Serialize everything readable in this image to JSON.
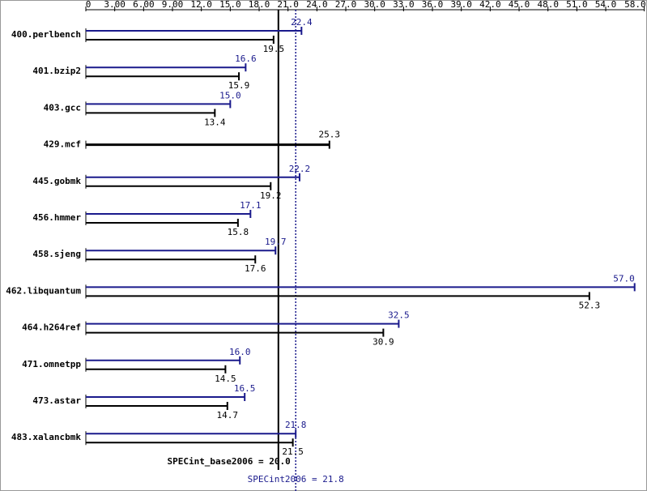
{
  "chart_data": {
    "type": "bar",
    "orientation": "horizontal",
    "categories": [
      "400.perlbench",
      "401.bzip2",
      "403.gcc",
      "429.mcf",
      "445.gobmk",
      "456.hmmer",
      "458.sjeng",
      "462.libquantum",
      "464.h264ref",
      "471.omnetpp",
      "473.astar",
      "483.xalancbmk"
    ],
    "series": [
      {
        "color": "#1a1a8c",
        "values": [
          22.4,
          16.6,
          15.0,
          null,
          22.2,
          17.1,
          19.7,
          57.0,
          32.5,
          16.0,
          16.5,
          21.8
        ],
        "value_labels": [
          "22.4",
          "16.6",
          "15.0",
          null,
          "22.2",
          "17.1",
          "19.7",
          "57.0",
          "32.5",
          "16.0",
          "16.5",
          "21.8"
        ]
      },
      {
        "color": "#000000",
        "values": [
          19.5,
          15.9,
          13.4,
          25.3,
          19.2,
          15.8,
          17.6,
          52.3,
          30.9,
          14.5,
          14.7,
          21.5
        ],
        "value_labels": [
          "19.5",
          "15.9",
          "13.4",
          "25.3",
          "19.2",
          "15.8",
          "17.6",
          "52.3",
          "30.9",
          "14.5",
          "14.7",
          "21.5"
        ]
      }
    ],
    "xlim": [
      0,
      58
    ],
    "xticks": [
      {
        "value": 0,
        "label": "0"
      },
      {
        "value": 3,
        "label": "3.00"
      },
      {
        "value": 6,
        "label": "6.00"
      },
      {
        "value": 9,
        "label": "9.00"
      },
      {
        "value": 12,
        "label": "12.0"
      },
      {
        "value": 15,
        "label": "15.0"
      },
      {
        "value": 18,
        "label": "18.0"
      },
      {
        "value": 21,
        "label": "21.0"
      },
      {
        "value": 24,
        "label": "24.0"
      },
      {
        "value": 27,
        "label": "27.0"
      },
      {
        "value": 30,
        "label": "30.0"
      },
      {
        "value": 33,
        "label": "33.0"
      },
      {
        "value": 36,
        "label": "36.0"
      },
      {
        "value": 39,
        "label": "39.0"
      },
      {
        "value": 42,
        "label": "42.0"
      },
      {
        "value": 45,
        "label": "45.0"
      },
      {
        "value": 48,
        "label": "48.0"
      },
      {
        "value": 51,
        "label": "51.0"
      },
      {
        "value": 54,
        "label": "54.0"
      },
      {
        "value": 58,
        "label": "58.0"
      }
    ],
    "reference_lines": [
      {
        "value": 20.0,
        "label": "SPECint_base2006 = 20.0",
        "color": "#000000",
        "style": "solid"
      },
      {
        "value": 21.8,
        "label": "SPECint2006 = 21.8",
        "color": "#1a1a8c",
        "style": "dotted"
      }
    ]
  }
}
